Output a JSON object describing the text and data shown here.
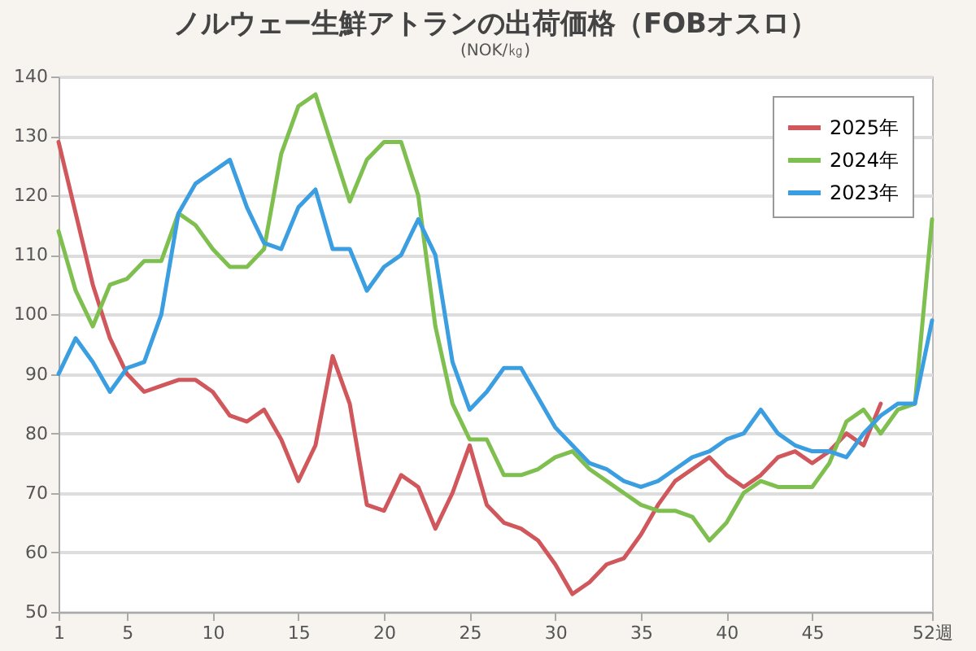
{
  "chart_data": {
    "type": "line",
    "title": "ノルウェー生鮮アトランの出荷価格（FOBオスロ）",
    "ylabel": "(NOK/㎏)",
    "x": [
      1,
      2,
      3,
      4,
      5,
      6,
      7,
      8,
      9,
      10,
      11,
      12,
      13,
      14,
      15,
      16,
      17,
      18,
      19,
      20,
      21,
      22,
      23,
      24,
      25,
      26,
      27,
      28,
      29,
      30,
      31,
      32,
      33,
      34,
      35,
      36,
      37,
      38,
      39,
      40,
      41,
      42,
      43,
      44,
      45,
      46,
      47,
      48,
      49,
      50,
      51,
      52
    ],
    "xlim": [
      1,
      52
    ],
    "xticks": [
      1,
      5,
      10,
      15,
      20,
      25,
      30,
      35,
      40,
      45,
      {
        "value": 52,
        "label": "52週"
      }
    ],
    "ylim": [
      50,
      140
    ],
    "yticks": [
      50,
      60,
      70,
      80,
      90,
      100,
      110,
      120,
      130,
      140
    ],
    "grid": "y",
    "legend": "top right",
    "line_style": "solid",
    "marker": "none",
    "series": [
      {
        "name": "2025年",
        "color": "#d0585c",
        "values": [
          129,
          117,
          105,
          96,
          90,
          87,
          88,
          89,
          89,
          87,
          83,
          82,
          84,
          79,
          72,
          78,
          93,
          85,
          68,
          67,
          73,
          71,
          64,
          70,
          78,
          68,
          65,
          64,
          62,
          58,
          53,
          55,
          58,
          59,
          63,
          68,
          72,
          74,
          76,
          73,
          71,
          73,
          76,
          77,
          75,
          77,
          80,
          78,
          85,
          null,
          null,
          null
        ]
      },
      {
        "name": "2024年",
        "color": "#7fbf4f",
        "values": [
          114,
          104,
          98,
          105,
          106,
          109,
          109,
          117,
          115,
          111,
          108,
          108,
          111,
          127,
          135,
          137,
          128,
          119,
          126,
          129,
          129,
          120,
          98,
          85,
          79,
          79,
          73,
          73,
          74,
          76,
          77,
          74,
          72,
          70,
          68,
          67,
          67,
          66,
          62,
          65,
          70,
          72,
          71,
          71,
          71,
          75,
          82,
          84,
          80,
          84,
          85,
          116
        ]
      },
      {
        "name": "2023年",
        "color": "#3b9ee0",
        "values": [
          90,
          96,
          92,
          87,
          91,
          92,
          100,
          117,
          122,
          124,
          126,
          118,
          112,
          111,
          118,
          121,
          111,
          111,
          104,
          108,
          110,
          116,
          110,
          92,
          84,
          87,
          91,
          91,
          86,
          81,
          78,
          75,
          74,
          72,
          71,
          72,
          74,
          76,
          77,
          79,
          80,
          84,
          80,
          78,
          77,
          77,
          76,
          80,
          83,
          85,
          85,
          99
        ]
      }
    ]
  }
}
